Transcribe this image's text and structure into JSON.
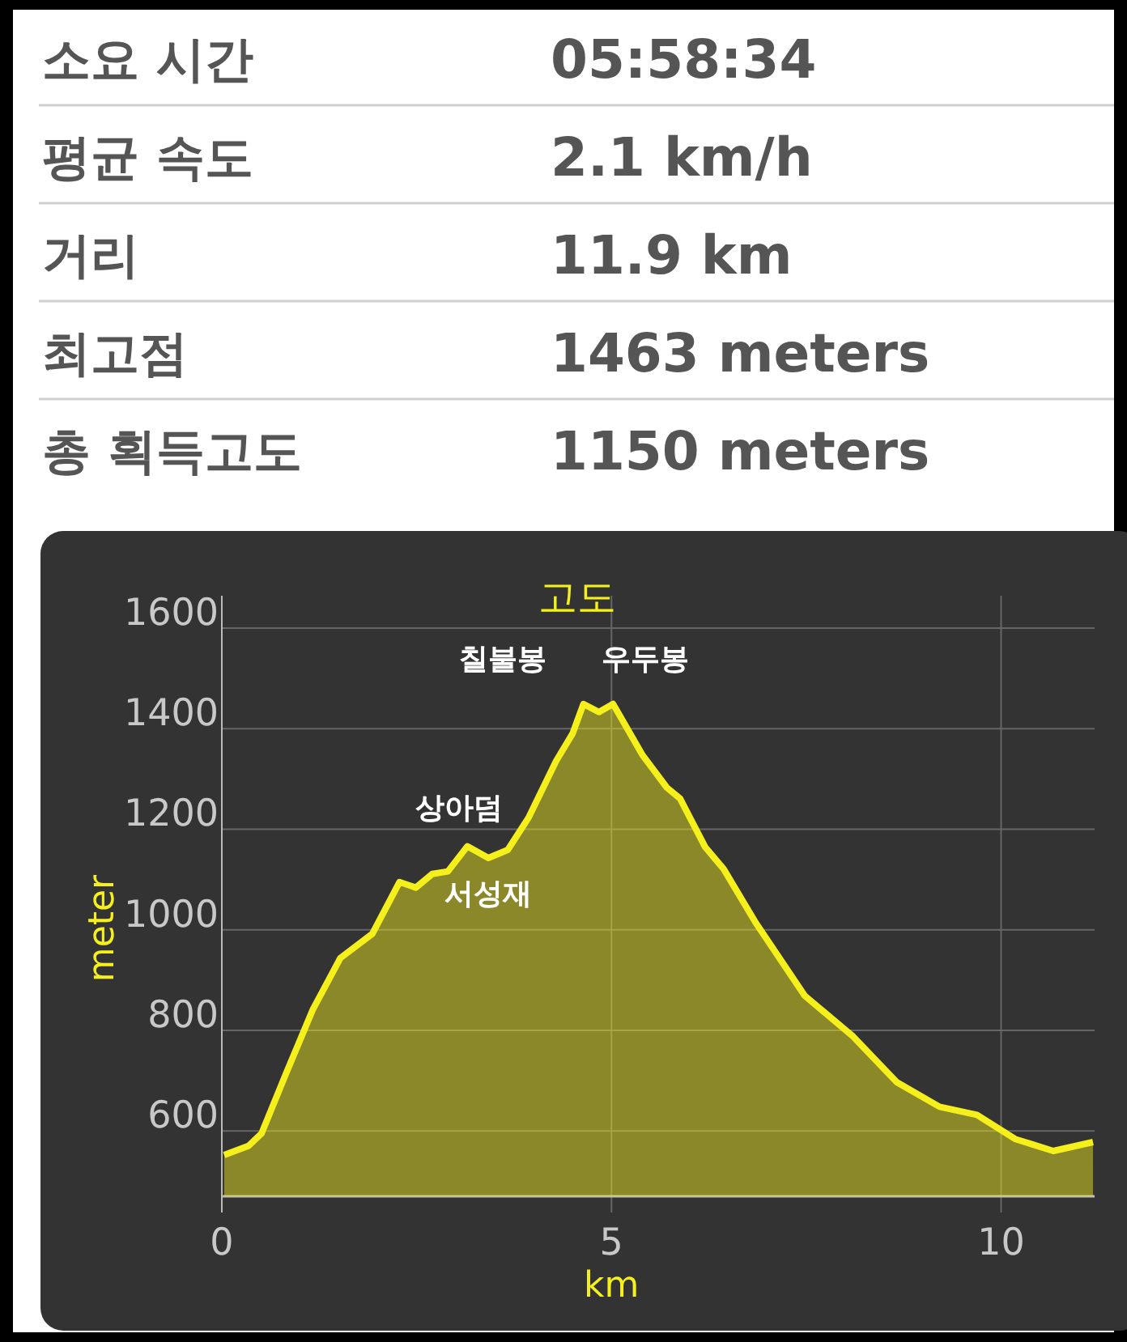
{
  "chart_data": {
    "type": "area",
    "title": "고도",
    "xlabel": "km",
    "ylabel": "meter",
    "x": [
      0.03,
      0.34,
      0.51,
      0.82,
      1.17,
      1.52,
      1.93,
      2.28,
      2.49,
      2.7,
      2.9,
      3.15,
      3.42,
      3.67,
      3.94,
      4.29,
      4.5,
      4.64,
      4.84,
      5.02,
      5.4,
      5.71,
      5.88,
      6.2,
      6.44,
      6.85,
      7.48,
      8.1,
      8.66,
      9.21,
      9.69,
      10.18,
      10.67,
      11.18
    ],
    "series": [
      {
        "color": "#f5ef1c",
        "values": [
          552,
          570,
          595,
          713,
          842,
          944,
          992,
          1095,
          1084,
          1111,
          1116,
          1166,
          1143,
          1159,
          1224,
          1336,
          1390,
          1449,
          1433,
          1449,
          1347,
          1283,
          1261,
          1165,
          1121,
          1014,
          869,
          788,
          697,
          648,
          632,
          584,
          560,
          578
        ]
      }
    ],
    "xlim": [
      0,
      11.2
    ],
    "xticks": [
      0,
      5,
      10
    ],
    "ylim": [
      470,
      1600
    ],
    "yticks": [
      600,
      800,
      1000,
      1200,
      1400,
      1600
    ],
    "grid": true,
    "annotations": [
      {
        "text": "칠불봉",
        "x": 4.64,
        "y": 1449
      },
      {
        "text": "우두봉",
        "x": 5.02,
        "y": 1449
      },
      {
        "text": "상아덤",
        "x": 3.15,
        "y": 1166
      },
      {
        "text": "서성재",
        "x": 3.42,
        "y": 1143
      },
      "소요 시간",
      "05:58:34",
      "평균 속도",
      "2.1 km/h",
      "거리",
      "11.9 km",
      "최고점",
      "1463 meters",
      "총 획득고도",
      "1150 meters"
    ]
  }
}
